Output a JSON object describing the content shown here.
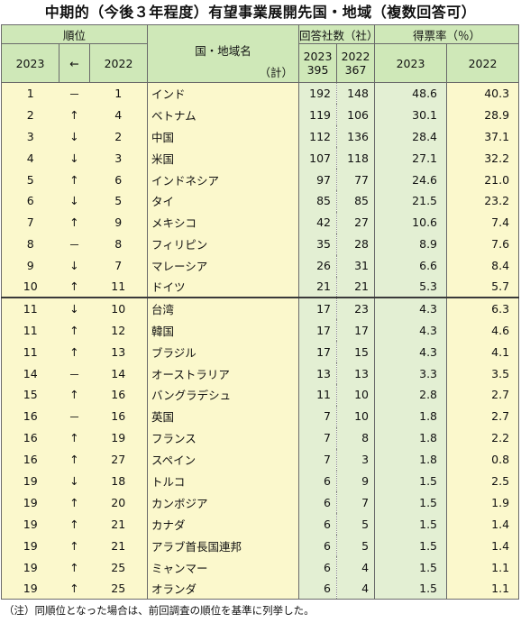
{
  "title": "中期的（今後３年程度）有望事業展開先国・地域（複数回答可）",
  "headers": {
    "rank": "順位",
    "rank_2023": "2023",
    "rank_arrow": "←",
    "rank_2022": "2022",
    "country": "国・地域名",
    "country_total": "（計）",
    "companies": "回答社数（社）",
    "companies_2023_year": "2023",
    "companies_2023_total": "395",
    "companies_2022_year": "2022",
    "companies_2022_total": "367",
    "share": "得票率（％）",
    "share_2023": "2023",
    "share_2022": "2022"
  },
  "rows": [
    {
      "rank2023": "1",
      "change": "－",
      "rank2022": "1",
      "name": "インド",
      "c2023": "192",
      "c2022": "148",
      "s2023": "48.6",
      "s2022": "40.3"
    },
    {
      "rank2023": "2",
      "change": "↑",
      "rank2022": "4",
      "name": "ベトナム",
      "c2023": "119",
      "c2022": "106",
      "s2023": "30.1",
      "s2022": "28.9"
    },
    {
      "rank2023": "3",
      "change": "↓",
      "rank2022": "2",
      "name": "中国",
      "c2023": "112",
      "c2022": "136",
      "s2023": "28.4",
      "s2022": "37.1"
    },
    {
      "rank2023": "4",
      "change": "↓",
      "rank2022": "3",
      "name": "米国",
      "c2023": "107",
      "c2022": "118",
      "s2023": "27.1",
      "s2022": "32.2"
    },
    {
      "rank2023": "5",
      "change": "↑",
      "rank2022": "6",
      "name": "インドネシア",
      "c2023": "97",
      "c2022": "77",
      "s2023": "24.6",
      "s2022": "21.0"
    },
    {
      "rank2023": "6",
      "change": "↓",
      "rank2022": "5",
      "name": "タイ",
      "c2023": "85",
      "c2022": "85",
      "s2023": "21.5",
      "s2022": "23.2"
    },
    {
      "rank2023": "7",
      "change": "↑",
      "rank2022": "9",
      "name": "メキシコ",
      "c2023": "42",
      "c2022": "27",
      "s2023": "10.6",
      "s2022": "7.4"
    },
    {
      "rank2023": "8",
      "change": "－",
      "rank2022": "8",
      "name": "フィリピン",
      "c2023": "35",
      "c2022": "28",
      "s2023": "8.9",
      "s2022": "7.6"
    },
    {
      "rank2023": "9",
      "change": "↓",
      "rank2022": "7",
      "name": "マレーシア",
      "c2023": "26",
      "c2022": "31",
      "s2023": "6.6",
      "s2022": "8.4"
    },
    {
      "rank2023": "10",
      "change": "↑",
      "rank2022": "11",
      "name": "ドイツ",
      "c2023": "21",
      "c2022": "21",
      "s2023": "5.3",
      "s2022": "5.7"
    },
    {
      "rank2023": "11",
      "change": "↓",
      "rank2022": "10",
      "name": "台湾",
      "c2023": "17",
      "c2022": "23",
      "s2023": "4.3",
      "s2022": "6.3"
    },
    {
      "rank2023": "11",
      "change": "↑",
      "rank2022": "12",
      "name": "韓国",
      "c2023": "17",
      "c2022": "17",
      "s2023": "4.3",
      "s2022": "4.6"
    },
    {
      "rank2023": "11",
      "change": "↑",
      "rank2022": "13",
      "name": "ブラジル",
      "c2023": "17",
      "c2022": "15",
      "s2023": "4.3",
      "s2022": "4.1"
    },
    {
      "rank2023": "14",
      "change": "－",
      "rank2022": "14",
      "name": "オーストラリア",
      "c2023": "13",
      "c2022": "13",
      "s2023": "3.3",
      "s2022": "3.5"
    },
    {
      "rank2023": "15",
      "change": "↑",
      "rank2022": "16",
      "name": "バングラデシュ",
      "c2023": "11",
      "c2022": "10",
      "s2023": "2.8",
      "s2022": "2.7"
    },
    {
      "rank2023": "16",
      "change": "－",
      "rank2022": "16",
      "name": "英国",
      "c2023": "7",
      "c2022": "10",
      "s2023": "1.8",
      "s2022": "2.7"
    },
    {
      "rank2023": "16",
      "change": "↑",
      "rank2022": "19",
      "name": "フランス",
      "c2023": "7",
      "c2022": "8",
      "s2023": "1.8",
      "s2022": "2.2"
    },
    {
      "rank2023": "16",
      "change": "↑",
      "rank2022": "27",
      "name": "スペイン",
      "c2023": "7",
      "c2022": "3",
      "s2023": "1.8",
      "s2022": "0.8"
    },
    {
      "rank2023": "19",
      "change": "↓",
      "rank2022": "18",
      "name": "トルコ",
      "c2023": "6",
      "c2022": "9",
      "s2023": "1.5",
      "s2022": "2.5"
    },
    {
      "rank2023": "19",
      "change": "↑",
      "rank2022": "20",
      "name": "カンボジア",
      "c2023": "6",
      "c2022": "7",
      "s2023": "1.5",
      "s2022": "1.9"
    },
    {
      "rank2023": "19",
      "change": "↑",
      "rank2022": "21",
      "name": "カナダ",
      "c2023": "6",
      "c2022": "5",
      "s2023": "1.5",
      "s2022": "1.4"
    },
    {
      "rank2023": "19",
      "change": "↑",
      "rank2022": "21",
      "name": "アラブ首長国連邦",
      "c2023": "6",
      "c2022": "5",
      "s2023": "1.5",
      "s2022": "1.4"
    },
    {
      "rank2023": "19",
      "change": "↑",
      "rank2022": "25",
      "name": "ミャンマー",
      "c2023": "6",
      "c2022": "4",
      "s2023": "1.5",
      "s2022": "1.1"
    },
    {
      "rank2023": "19",
      "change": "↑",
      "rank2022": "25",
      "name": "オランダ",
      "c2023": "6",
      "c2022": "4",
      "s2023": "1.5",
      "s2022": "1.1"
    }
  ],
  "note": "（注）同順位となった場合は、前回調査の順位を基準に列挙した。"
}
